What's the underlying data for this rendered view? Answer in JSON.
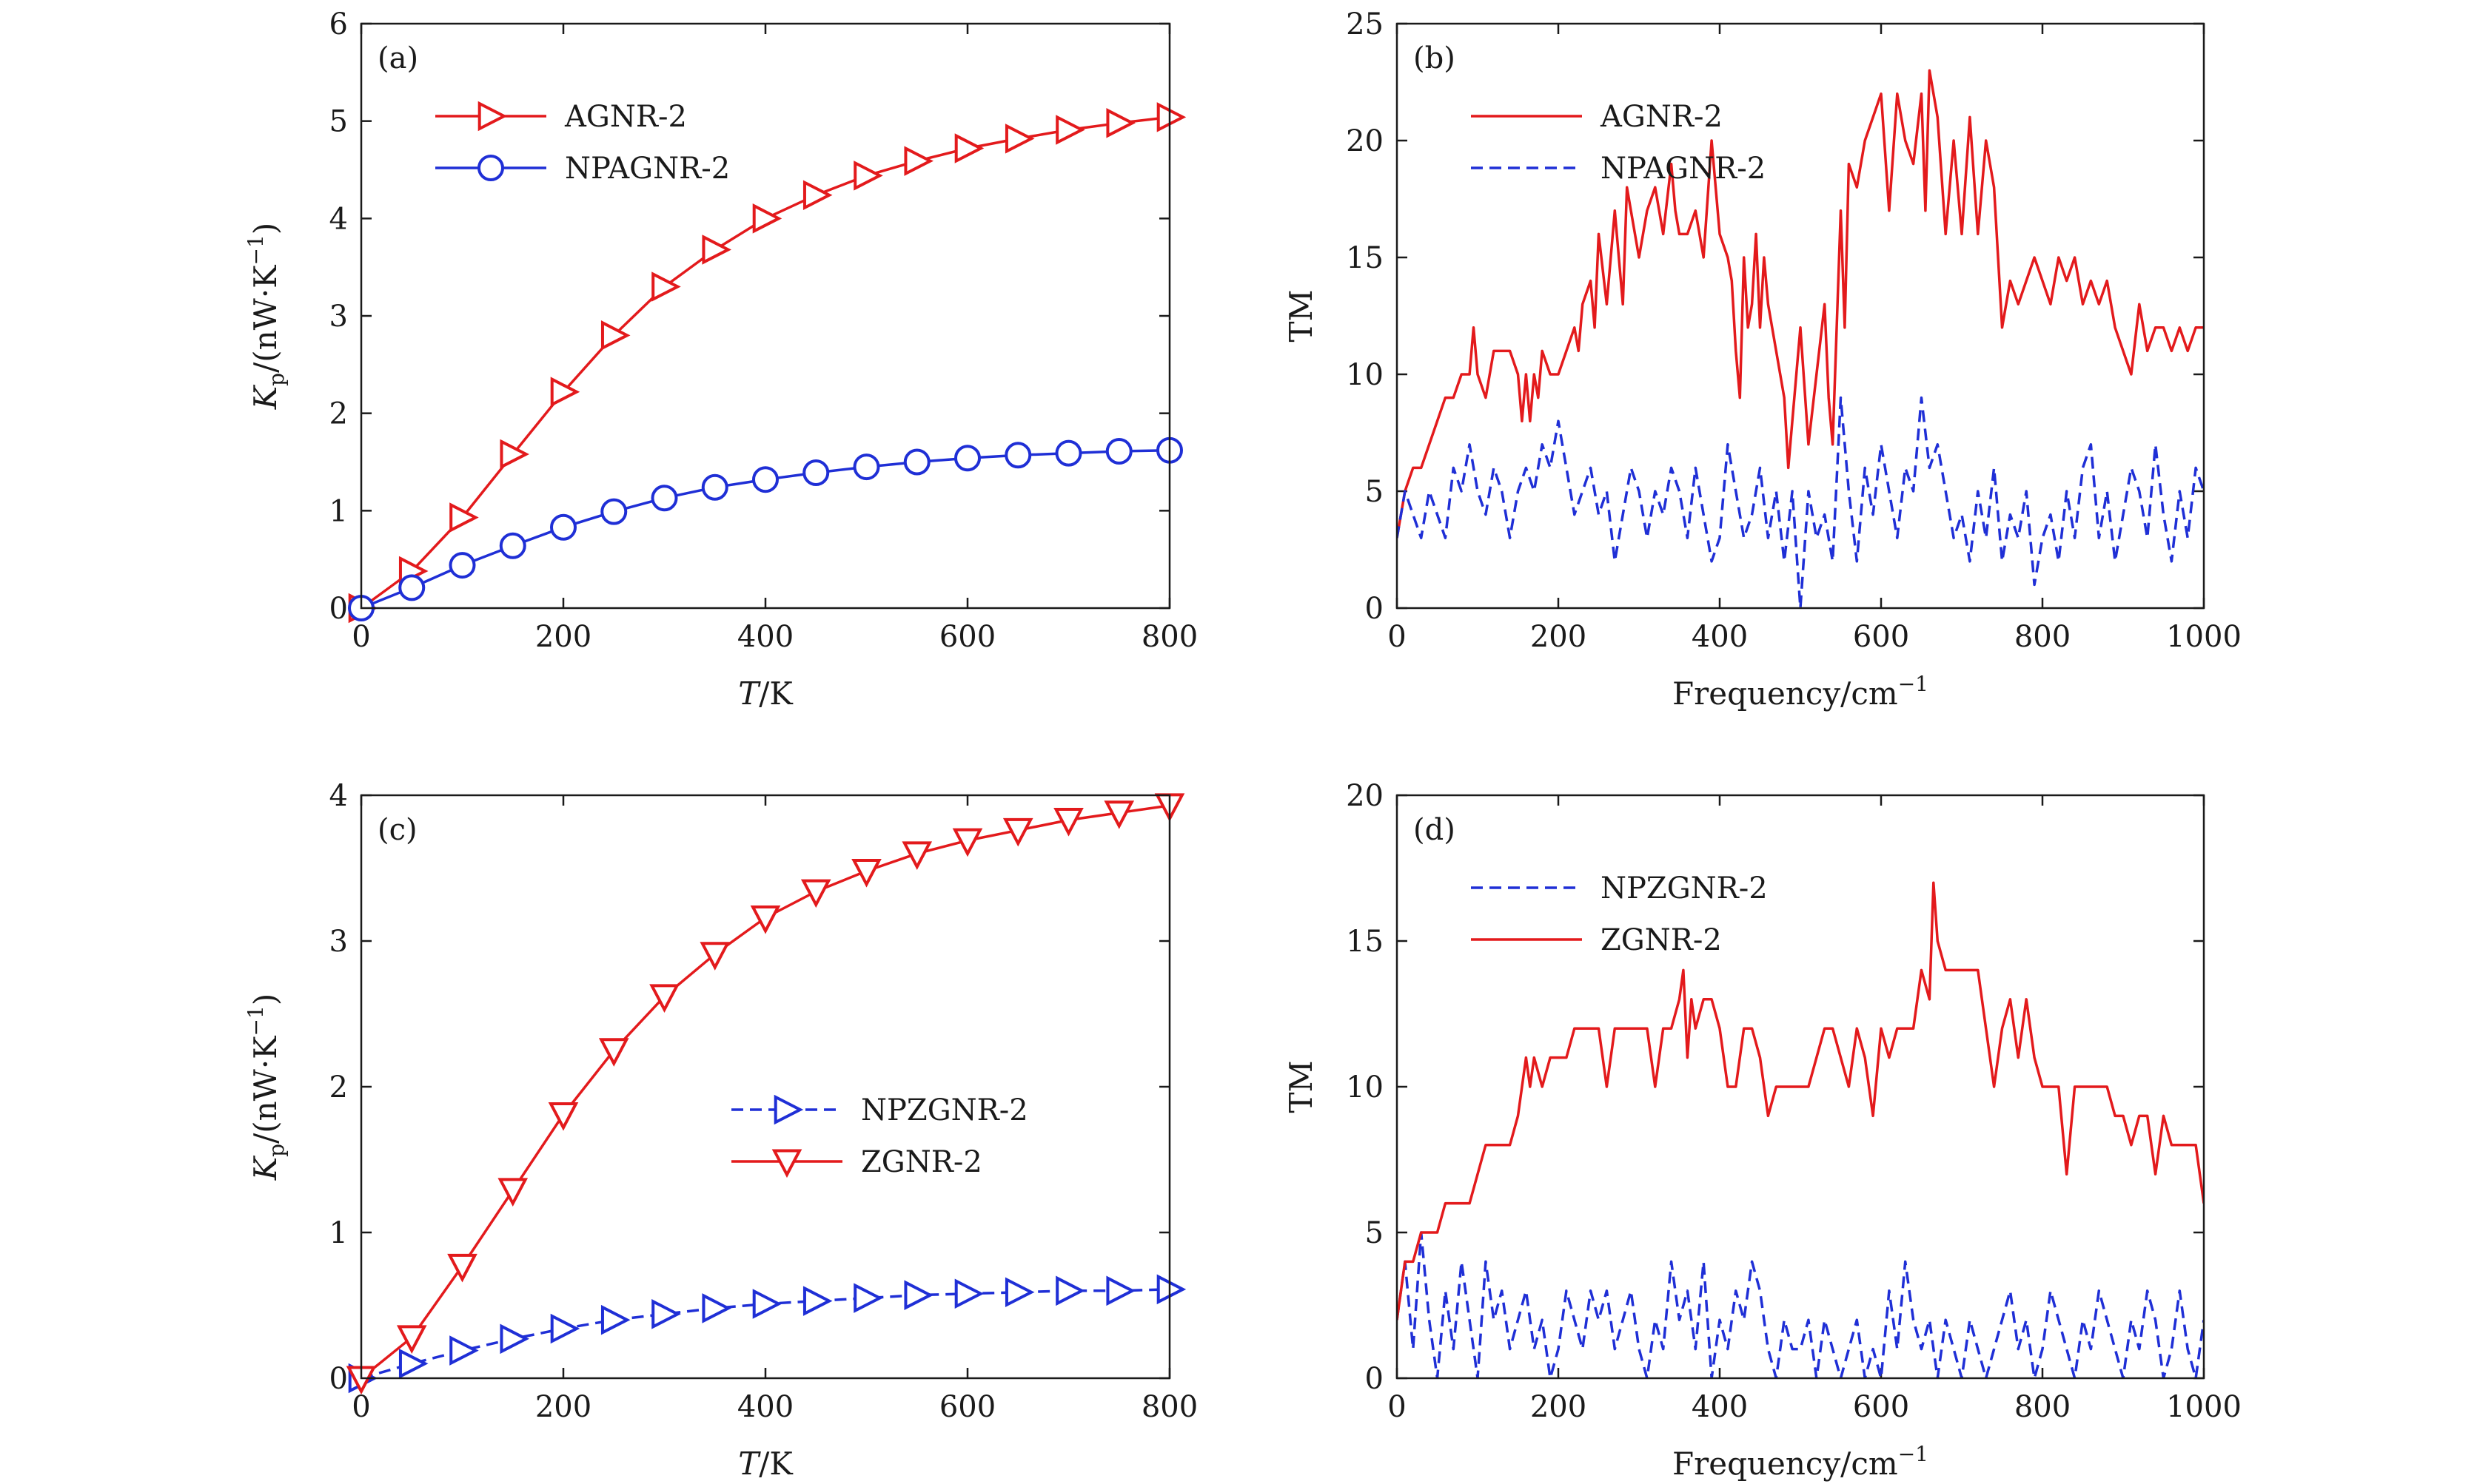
{
  "chart_data": [
    {
      "id": "a",
      "type": "line",
      "panel_label": "(a)",
      "xlabel": {
        "main": "T",
        "rest": "/K"
      },
      "ylabel": {
        "main": "K",
        "sub": "p",
        "rest": "/(nW·K",
        "sup": "−1",
        "tail": ")"
      },
      "xlim": [
        0,
        800
      ],
      "ylim": [
        0,
        6
      ],
      "xticks": [
        0,
        200,
        400,
        600,
        800
      ],
      "yticks": [
        0,
        1,
        2,
        3,
        4,
        5,
        6
      ],
      "legend_position": "upper-left",
      "series": [
        {
          "name": "AGNR-2",
          "color": "#e31a1c",
          "dash": "solid",
          "marker": "triangle-right",
          "x": [
            0,
            50,
            100,
            150,
            200,
            250,
            300,
            350,
            400,
            450,
            500,
            550,
            600,
            650,
            700,
            750,
            800
          ],
          "values": [
            0,
            0.38,
            0.93,
            1.58,
            2.22,
            2.8,
            3.3,
            3.68,
            4.0,
            4.24,
            4.44,
            4.59,
            4.72,
            4.82,
            4.91,
            4.98,
            5.04
          ]
        },
        {
          "name": "NPAGNR-2",
          "color": "#1f2fd6",
          "dash": "solid",
          "marker": "circle",
          "x": [
            0,
            50,
            100,
            150,
            200,
            250,
            300,
            350,
            400,
            450,
            500,
            550,
            600,
            650,
            700,
            750,
            800
          ],
          "values": [
            0,
            0.21,
            0.44,
            0.64,
            0.83,
            0.99,
            1.13,
            1.24,
            1.32,
            1.39,
            1.45,
            1.5,
            1.54,
            1.57,
            1.59,
            1.61,
            1.62
          ]
        }
      ]
    },
    {
      "id": "b",
      "type": "line",
      "panel_label": "(b)",
      "xlabel": {
        "main": "Frequency/cm",
        "sup": "−1"
      },
      "ylabel": {
        "main": "TM"
      },
      "xlim": [
        0,
        1000
      ],
      "ylim": [
        0,
        25
      ],
      "xticks": [
        0,
        200,
        400,
        600,
        800,
        1000
      ],
      "yticks": [
        0,
        5,
        10,
        15,
        20,
        25
      ],
      "legend_position": "upper-left",
      "series": [
        {
          "name": "AGNR-2",
          "color": "#e31a1c",
          "dash": "solid",
          "x": [
            0,
            10,
            20,
            30,
            40,
            50,
            60,
            70,
            80,
            90,
            95,
            100,
            110,
            120,
            130,
            140,
            150,
            155,
            160,
            165,
            170,
            175,
            180,
            190,
            200,
            210,
            220,
            225,
            230,
            240,
            245,
            250,
            260,
            270,
            280,
            285,
            290,
            300,
            310,
            320,
            330,
            340,
            345,
            350,
            360,
            370,
            380,
            390,
            400,
            410,
            415,
            420,
            425,
            430,
            435,
            440,
            445,
            450,
            455,
            460,
            470,
            480,
            485,
            490,
            500,
            510,
            520,
            530,
            535,
            540,
            550,
            555,
            560,
            570,
            580,
            590,
            600,
            610,
            620,
            630,
            640,
            650,
            655,
            660,
            670,
            680,
            690,
            700,
            710,
            720,
            730,
            740,
            750,
            760,
            770,
            780,
            790,
            800,
            810,
            820,
            830,
            840,
            850,
            860,
            870,
            880,
            890,
            900,
            910,
            920,
            930,
            940,
            950,
            960,
            970,
            980,
            990,
            1000
          ],
          "values": [
            3,
            5,
            6,
            6,
            7,
            8,
            9,
            9,
            10,
            10,
            12,
            10,
            9,
            11,
            11,
            11,
            10,
            8,
            10,
            8,
            10,
            9,
            11,
            10,
            10,
            11,
            12,
            11,
            13,
            14,
            12,
            16,
            13,
            17,
            13,
            18,
            17,
            15,
            17,
            18,
            16,
            19,
            17,
            16,
            16,
            17,
            15,
            20,
            16,
            15,
            14,
            11,
            9,
            15,
            12,
            13,
            16,
            12,
            15,
            13,
            11,
            9,
            6,
            8,
            12,
            7,
            10,
            13,
            9,
            7,
            17,
            12,
            19,
            18,
            20,
            21,
            22,
            17,
            22,
            20,
            19,
            22,
            17,
            23,
            21,
            16,
            20,
            16,
            21,
            16,
            20,
            18,
            12,
            14,
            13,
            14,
            15,
            14,
            13,
            15,
            14,
            15,
            13,
            14,
            13,
            14,
            12,
            11,
            10,
            13,
            11,
            12,
            12,
            11,
            12,
            11,
            12,
            12
          ]
        },
        {
          "name": "NPAGNR-2",
          "color": "#1f2fd6",
          "dash": "dashed",
          "x": [
            0,
            10,
            20,
            30,
            40,
            50,
            60,
            70,
            80,
            90,
            100,
            110,
            120,
            130,
            140,
            150,
            160,
            170,
            180,
            190,
            200,
            210,
            220,
            230,
            240,
            250,
            260,
            270,
            280,
            290,
            300,
            310,
            320,
            330,
            340,
            350,
            360,
            370,
            380,
            390,
            400,
            410,
            420,
            430,
            440,
            450,
            460,
            470,
            480,
            490,
            500,
            510,
            520,
            530,
            540,
            550,
            560,
            570,
            580,
            590,
            600,
            610,
            620,
            630,
            640,
            650,
            660,
            670,
            680,
            690,
            700,
            710,
            720,
            730,
            740,
            750,
            760,
            770,
            780,
            790,
            800,
            810,
            820,
            830,
            840,
            850,
            860,
            870,
            880,
            890,
            900,
            910,
            920,
            930,
            940,
            950,
            960,
            970,
            980,
            990,
            1000
          ],
          "values": [
            3,
            5,
            4,
            3,
            5,
            4,
            3,
            6,
            5,
            7,
            5,
            4,
            6,
            5,
            3,
            5,
            6,
            5,
            7,
            6,
            8,
            6,
            4,
            5,
            6,
            4,
            5,
            2,
            4,
            6,
            5,
            3,
            5,
            4,
            6,
            5,
            3,
            6,
            4,
            2,
            3,
            7,
            5,
            3,
            4,
            6,
            3,
            5,
            2,
            5,
            0,
            5,
            3,
            4,
            2,
            9,
            5,
            2,
            6,
            4,
            7,
            5,
            3,
            6,
            5,
            9,
            6,
            7,
            5,
            3,
            4,
            2,
            5,
            3,
            6,
            2,
            4,
            3,
            5,
            1,
            3,
            4,
            2,
            5,
            3,
            6,
            7,
            3,
            5,
            2,
            4,
            6,
            5,
            3,
            7,
            4,
            2,
            5,
            3,
            6,
            5
          ]
        }
      ]
    },
    {
      "id": "c",
      "type": "line",
      "panel_label": "(c)",
      "xlabel": {
        "main": "T",
        "rest": "/K"
      },
      "ylabel": {
        "main": "K",
        "sub": "p",
        "rest": "/(nW·K",
        "sup": "−1",
        "tail": ")"
      },
      "xlim": [
        0,
        800
      ],
      "ylim": [
        0,
        4
      ],
      "xticks": [
        0,
        200,
        400,
        600,
        800
      ],
      "yticks": [
        0,
        1,
        2,
        3,
        4
      ],
      "legend_position": "center-right",
      "series": [
        {
          "name": "NPZGNR-2",
          "color": "#1f2fd6",
          "dash": "dashed",
          "marker": "triangle-right",
          "x": [
            0,
            50,
            100,
            150,
            200,
            250,
            300,
            350,
            400,
            450,
            500,
            550,
            600,
            650,
            700,
            750,
            800
          ],
          "values": [
            0,
            0.1,
            0.19,
            0.27,
            0.34,
            0.4,
            0.44,
            0.48,
            0.51,
            0.53,
            0.55,
            0.57,
            0.58,
            0.59,
            0.6,
            0.6,
            0.61
          ]
        },
        {
          "name": "ZGNR-2",
          "color": "#e31a1c",
          "dash": "solid",
          "marker": "triangle-down",
          "x": [
            0,
            50,
            100,
            150,
            200,
            250,
            300,
            350,
            400,
            450,
            500,
            550,
            600,
            650,
            700,
            750,
            800
          ],
          "values": [
            0,
            0.28,
            0.77,
            1.29,
            1.81,
            2.25,
            2.62,
            2.91,
            3.16,
            3.34,
            3.48,
            3.6,
            3.69,
            3.76,
            3.83,
            3.88,
            3.93
          ]
        }
      ]
    },
    {
      "id": "d",
      "type": "line",
      "panel_label": "(d)",
      "xlabel": {
        "main": "Frequency/cm",
        "sup": "−1"
      },
      "ylabel": {
        "main": "TM"
      },
      "xlim": [
        0,
        1000
      ],
      "ylim": [
        0,
        20
      ],
      "xticks": [
        0,
        200,
        400,
        600,
        800,
        1000
      ],
      "yticks": [
        0,
        5,
        10,
        15,
        20
      ],
      "legend_position": "upper-left",
      "series": [
        {
          "name": "NPZGNR-2",
          "color": "#1f2fd6",
          "dash": "dashed",
          "x": [
            0,
            10,
            20,
            30,
            40,
            50,
            60,
            70,
            80,
            90,
            100,
            110,
            120,
            130,
            140,
            150,
            160,
            170,
            180,
            190,
            200,
            210,
            220,
            230,
            240,
            250,
            260,
            270,
            280,
            290,
            300,
            310,
            320,
            330,
            340,
            350,
            360,
            370,
            380,
            390,
            400,
            410,
            420,
            430,
            440,
            450,
            460,
            470,
            480,
            490,
            500,
            510,
            520,
            530,
            540,
            550,
            560,
            570,
            580,
            590,
            600,
            610,
            620,
            630,
            640,
            650,
            660,
            670,
            680,
            690,
            700,
            710,
            720,
            730,
            740,
            750,
            760,
            770,
            780,
            790,
            800,
            810,
            820,
            830,
            840,
            850,
            860,
            870,
            880,
            890,
            900,
            910,
            920,
            930,
            940,
            950,
            960,
            970,
            980,
            990,
            1000
          ],
          "values": [
            2,
            4,
            1,
            5,
            2,
            0,
            3,
            1,
            4,
            2,
            0,
            4,
            2,
            3,
            1,
            2,
            3,
            1,
            2,
            0,
            1,
            3,
            2,
            1,
            3,
            2,
            3,
            1,
            2,
            3,
            1,
            0,
            2,
            1,
            4,
            2,
            3,
            1,
            4,
            0,
            2,
            1,
            3,
            2,
            4,
            3,
            1,
            0,
            2,
            1,
            1,
            2,
            0,
            2,
            1,
            0,
            1,
            2,
            0,
            1,
            0,
            3,
            1,
            4,
            2,
            1,
            2,
            0,
            2,
            1,
            0,
            2,
            1,
            0,
            1,
            2,
            3,
            1,
            2,
            0,
            1,
            3,
            2,
            1,
            0,
            2,
            1,
            3,
            2,
            1,
            0,
            2,
            1,
            3,
            2,
            0,
            1,
            3,
            1,
            0,
            2
          ]
        },
        {
          "name": "ZGNR-2",
          "color": "#e31a1c",
          "dash": "solid",
          "x": [
            0,
            10,
            20,
            30,
            40,
            50,
            60,
            70,
            80,
            90,
            100,
            110,
            120,
            130,
            140,
            150,
            160,
            165,
            170,
            180,
            190,
            200,
            210,
            220,
            230,
            240,
            250,
            260,
            270,
            280,
            290,
            300,
            310,
            320,
            330,
            340,
            350,
            355,
            360,
            365,
            370,
            380,
            390,
            400,
            410,
            420,
            430,
            440,
            450,
            460,
            470,
            480,
            490,
            500,
            510,
            520,
            530,
            540,
            550,
            560,
            570,
            580,
            590,
            600,
            610,
            620,
            630,
            640,
            650,
            660,
            665,
            670,
            680,
            690,
            700,
            710,
            720,
            730,
            740,
            750,
            760,
            770,
            780,
            790,
            800,
            810,
            820,
            830,
            840,
            850,
            860,
            870,
            880,
            890,
            900,
            910,
            920,
            930,
            940,
            950,
            960,
            970,
            980,
            990,
            1000
          ],
          "values": [
            2,
            4,
            4,
            5,
            5,
            5,
            6,
            6,
            6,
            6,
            7,
            8,
            8,
            8,
            8,
            9,
            11,
            10,
            11,
            10,
            11,
            11,
            11,
            12,
            12,
            12,
            12,
            10,
            12,
            12,
            12,
            12,
            12,
            10,
            12,
            12,
            13,
            14,
            11,
            13,
            12,
            13,
            13,
            12,
            10,
            10,
            12,
            12,
            11,
            9,
            10,
            10,
            10,
            10,
            10,
            11,
            12,
            12,
            11,
            10,
            12,
            11,
            9,
            12,
            11,
            12,
            12,
            12,
            14,
            13,
            17,
            15,
            14,
            14,
            14,
            14,
            14,
            12,
            10,
            12,
            13,
            11,
            13,
            11,
            10,
            10,
            10,
            7,
            10,
            10,
            10,
            10,
            10,
            9,
            9,
            8,
            9,
            9,
            7,
            9,
            8,
            8,
            8,
            8,
            6
          ]
        }
      ]
    }
  ]
}
